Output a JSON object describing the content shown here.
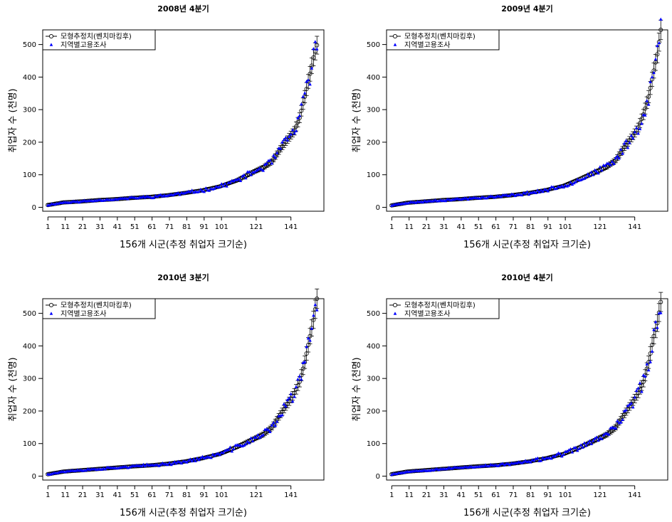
{
  "chart_data": [
    {
      "type": "scatter",
      "title": "2008년 4분기",
      "xlabel": "156개 시군(추정 취업자 크기순)",
      "ylabel": "취업자 수 (천명)",
      "xlim": [
        1,
        156
      ],
      "ylim": [
        0,
        500
      ],
      "xticks": [
        1,
        11,
        21,
        31,
        41,
        51,
        61,
        71,
        81,
        91,
        101,
        121,
        141
      ],
      "yticks": [
        0,
        100,
        200,
        300,
        400,
        500
      ],
      "legend": "top-left",
      "legend_labels": [
        "모형추정치(벤치마킹후)",
        "지역별고용조사"
      ],
      "colors": {
        "model": "#000000",
        "survey": "#0000ff"
      },
      "anchors": [
        [
          1,
          7
        ],
        [
          10,
          15
        ],
        [
          20,
          18
        ],
        [
          30,
          22
        ],
        [
          40,
          25
        ],
        [
          50,
          29
        ],
        [
          60,
          32
        ],
        [
          70,
          37
        ],
        [
          80,
          44
        ],
        [
          90,
          52
        ],
        [
          100,
          64
        ],
        [
          110,
          83
        ],
        [
          120,
          110
        ],
        [
          125,
          122
        ],
        [
          130,
          140
        ],
        [
          135,
          180
        ],
        [
          140,
          215
        ],
        [
          143,
          235
        ],
        [
          146,
          275
        ],
        [
          149,
          340
        ],
        [
          152,
          410
        ],
        [
          154,
          460
        ],
        [
          156,
          498
        ]
      ],
      "noise_seed": 11
    },
    {
      "type": "scatter",
      "title": "2009년 4분기",
      "xlabel": "156개 시군(추정 취업자 크기순)",
      "ylabel": "취업자 수 (천명)",
      "xlim": [
        1,
        156
      ],
      "ylim": [
        0,
        500
      ],
      "xticks": [
        1,
        11,
        21,
        31,
        41,
        51,
        61,
        71,
        81,
        91,
        101,
        121,
        141
      ],
      "yticks": [
        0,
        100,
        200,
        300,
        400,
        500
      ],
      "legend": "top-left",
      "legend_labels": [
        "모형추정치(벤치마킹후)",
        "지역별고용조사"
      ],
      "colors": {
        "model": "#000000",
        "survey": "#0000ff"
      },
      "anchors": [
        [
          1,
          6
        ],
        [
          10,
          14
        ],
        [
          20,
          18
        ],
        [
          30,
          22
        ],
        [
          40,
          25
        ],
        [
          50,
          29
        ],
        [
          60,
          32
        ],
        [
          70,
          37
        ],
        [
          80,
          44
        ],
        [
          90,
          53
        ],
        [
          100,
          66
        ],
        [
          110,
          88
        ],
        [
          120,
          112
        ],
        [
          125,
          125
        ],
        [
          130,
          145
        ],
        [
          135,
          185
        ],
        [
          140,
          220
        ],
        [
          143,
          245
        ],
        [
          146,
          285
        ],
        [
          149,
          340
        ],
        [
          152,
          420
        ],
        [
          154,
          470
        ],
        [
          156,
          545
        ]
      ],
      "noise_seed": 23
    },
    {
      "type": "scatter",
      "title": "2010년 3분기",
      "xlabel": "156개 시군(추정 취업자 크기순)",
      "ylabel": "취업자 수 (천명)",
      "xlim": [
        1,
        156
      ],
      "ylim": [
        0,
        500
      ],
      "xticks": [
        1,
        11,
        21,
        31,
        41,
        51,
        61,
        71,
        81,
        91,
        101,
        121,
        141
      ],
      "yticks": [
        0,
        100,
        200,
        300,
        400,
        500
      ],
      "legend": "top-left",
      "legend_labels": [
        "모형추정치(벤치마킹후)",
        "지역별고용조사"
      ],
      "colors": {
        "model": "#000000",
        "survey": "#0000ff"
      },
      "anchors": [
        [
          1,
          6
        ],
        [
          10,
          14
        ],
        [
          20,
          18
        ],
        [
          30,
          22
        ],
        [
          40,
          26
        ],
        [
          50,
          30
        ],
        [
          60,
          33
        ],
        [
          70,
          38
        ],
        [
          80,
          45
        ],
        [
          90,
          55
        ],
        [
          100,
          68
        ],
        [
          110,
          90
        ],
        [
          120,
          115
        ],
        [
          125,
          128
        ],
        [
          130,
          150
        ],
        [
          135,
          190
        ],
        [
          140,
          230
        ],
        [
          143,
          255
        ],
        [
          146,
          290
        ],
        [
          149,
          350
        ],
        [
          152,
          430
        ],
        [
          154,
          480
        ],
        [
          156,
          545
        ]
      ],
      "noise_seed": 37
    },
    {
      "type": "scatter",
      "title": "2010년 4분기",
      "xlabel": "156개 시군(추정 취업자 크기순)",
      "ylabel": "취업자 수 (천명)",
      "xlim": [
        1,
        156
      ],
      "ylim": [
        0,
        500
      ],
      "xticks": [
        1,
        11,
        21,
        31,
        41,
        51,
        61,
        71,
        81,
        91,
        101,
        121,
        141
      ],
      "yticks": [
        0,
        100,
        200,
        300,
        400,
        500
      ],
      "legend": "top-left",
      "legend_labels": [
        "모형추정치(벤치마킹후)",
        "지역별고용조사"
      ],
      "colors": {
        "model": "#000000",
        "survey": "#0000ff"
      },
      "anchors": [
        [
          1,
          6
        ],
        [
          10,
          14
        ],
        [
          20,
          18
        ],
        [
          30,
          22
        ],
        [
          40,
          26
        ],
        [
          50,
          30
        ],
        [
          60,
          33
        ],
        [
          70,
          38
        ],
        [
          80,
          45
        ],
        [
          90,
          55
        ],
        [
          100,
          68
        ],
        [
          110,
          90
        ],
        [
          120,
          115
        ],
        [
          125,
          128
        ],
        [
          130,
          150
        ],
        [
          135,
          190
        ],
        [
          140,
          230
        ],
        [
          143,
          255
        ],
        [
          146,
          290
        ],
        [
          149,
          350
        ],
        [
          152,
          430
        ],
        [
          154,
          470
        ],
        [
          156,
          535
        ]
      ],
      "noise_seed": 53
    }
  ]
}
